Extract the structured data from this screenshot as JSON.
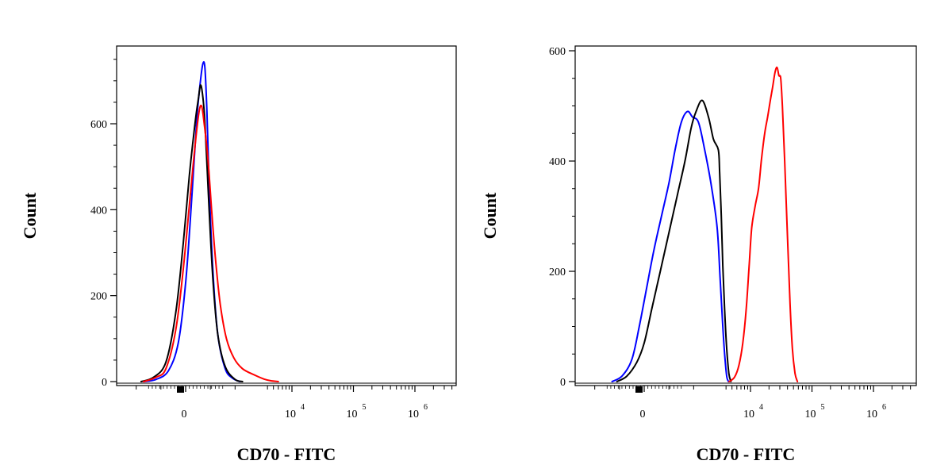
{
  "chart_data": [
    {
      "type": "line",
      "title": "",
      "xlabel": "CD70 - FITC",
      "ylabel": "Count",
      "x_scale": "biexponential",
      "x_ticks": [
        {
          "value": 0,
          "base": "0",
          "exp": ""
        },
        {
          "value": 10000,
          "base": "10",
          "exp": "4"
        },
        {
          "value": 100000,
          "base": "10",
          "exp": "5"
        },
        {
          "value": 1000000,
          "base": "10",
          "exp": "6"
        }
      ],
      "y_ticks": [
        0,
        200,
        400,
        600
      ],
      "ylim": [
        0,
        780
      ],
      "grid": false,
      "legend": "none",
      "series": [
        {
          "color": "#0000ff",
          "points": [
            [
              -1700,
              0
            ],
            [
              -1200,
              5
            ],
            [
              -700,
              25
            ],
            [
              -300,
              90
            ],
            [
              0,
              230
            ],
            [
              250,
              430
            ],
            [
              450,
              610
            ],
            [
              600,
              700
            ],
            [
              700,
              740
            ],
            [
              780,
              730
            ],
            [
              860,
              630
            ],
            [
              950,
              460
            ],
            [
              1100,
              260
            ],
            [
              1300,
              110
            ],
            [
              1600,
              30
            ],
            [
              1900,
              8
            ],
            [
              2200,
              0
            ]
          ]
        },
        {
          "color": "#000000",
          "points": [
            [
              -1800,
              0
            ],
            [
              -1300,
              10
            ],
            [
              -800,
              45
            ],
            [
              -400,
              160
            ],
            [
              -100,
              320
            ],
            [
              150,
              480
            ],
            [
              300,
              560
            ],
            [
              420,
              620
            ],
            [
              520,
              660
            ],
            [
              600,
              690
            ],
            [
              680,
              670
            ],
            [
              760,
              620
            ],
            [
              850,
              520
            ],
            [
              950,
              400
            ],
            [
              1100,
              240
            ],
            [
              1300,
              110
            ],
            [
              1600,
              35
            ],
            [
              2000,
              5
            ],
            [
              2300,
              0
            ]
          ]
        },
        {
          "color": "#ff0000",
          "points": [
            [
              -1700,
              0
            ],
            [
              -1200,
              10
            ],
            [
              -800,
              30
            ],
            [
              -400,
              120
            ],
            [
              -100,
              260
            ],
            [
              200,
              440
            ],
            [
              400,
              560
            ],
            [
              550,
              630
            ],
            [
              650,
              640
            ],
            [
              750,
              600
            ],
            [
              900,
              520
            ],
            [
              1050,
              400
            ],
            [
              1200,
              290
            ],
            [
              1400,
              180
            ],
            [
              1650,
              100
            ],
            [
              1950,
              55
            ],
            [
              2300,
              30
            ],
            [
              2800,
              15
            ],
            [
              3500,
              6
            ],
            [
              4500,
              2
            ],
            [
              6000,
              0
            ]
          ]
        }
      ]
    },
    {
      "type": "line",
      "title": "",
      "xlabel": "CD70 - FITC",
      "ylabel": "Count",
      "x_scale": "biexponential",
      "x_ticks": [
        {
          "value": 0,
          "base": "0",
          "exp": ""
        },
        {
          "value": 10000,
          "base": "10",
          "exp": "4"
        },
        {
          "value": 100000,
          "base": "10",
          "exp": "5"
        },
        {
          "value": 1000000,
          "base": "10",
          "exp": "6"
        }
      ],
      "y_ticks": [
        0,
        200,
        400,
        600
      ],
      "ylim": [
        0,
        610
      ],
      "grid": false,
      "legend": "none",
      "series": [
        {
          "color": "#0000ff",
          "points": [
            [
              -1300,
              0
            ],
            [
              -900,
              10
            ],
            [
              -500,
              40
            ],
            [
              -200,
              100
            ],
            [
              100,
              170
            ],
            [
              400,
              240
            ],
            [
              700,
              300
            ],
            [
              1000,
              360
            ],
            [
              1250,
              420
            ],
            [
              1500,
              470
            ],
            [
              1750,
              490
            ],
            [
              1950,
              480
            ],
            [
              2200,
              470
            ],
            [
              2450,
              420
            ],
            [
              2700,
              360
            ],
            [
              2950,
              280
            ],
            [
              3200,
              190
            ],
            [
              3500,
              110
            ],
            [
              3800,
              50
            ],
            [
              4100,
              10
            ],
            [
              4400,
              0
            ]
          ]
        },
        {
          "color": "#000000",
          "points": [
            [
              -1100,
              0
            ],
            [
              -700,
              10
            ],
            [
              -300,
              35
            ],
            [
              0,
              70
            ],
            [
              300,
              130
            ],
            [
              650,
              200
            ],
            [
              1000,
              270
            ],
            [
              1350,
              340
            ],
            [
              1650,
              400
            ],
            [
              1900,
              460
            ],
            [
              2100,
              490
            ],
            [
              2350,
              510
            ],
            [
              2600,
              480
            ],
            [
              2800,
              440
            ],
            [
              3000,
              420
            ],
            [
              3150,
              380
            ],
            [
              3350,
              300
            ],
            [
              3550,
              210
            ],
            [
              3800,
              130
            ],
            [
              4100,
              60
            ],
            [
              4450,
              15
            ],
            [
              4800,
              0
            ]
          ]
        },
        {
          "color": "#ff0000",
          "points": [
            [
              4500,
              0
            ],
            [
              5500,
              8
            ],
            [
              6500,
              30
            ],
            [
              7500,
              70
            ],
            [
              8500,
              130
            ],
            [
              9500,
              210
            ],
            [
              10500,
              280
            ],
            [
              12000,
              320
            ],
            [
              13500,
              350
            ],
            [
              15000,
              400
            ],
            [
              17000,
              450
            ],
            [
              19000,
              480
            ],
            [
              21000,
              510
            ],
            [
              23000,
              535
            ],
            [
              25000,
              560
            ],
            [
              27000,
              570
            ],
            [
              29000,
              555
            ],
            [
              31000,
              550
            ],
            [
              33000,
              500
            ],
            [
              36000,
              400
            ],
            [
              40000,
              260
            ],
            [
              44000,
              140
            ],
            [
              48000,
              60
            ],
            [
              53000,
              15
            ],
            [
              58000,
              0
            ]
          ]
        }
      ]
    }
  ]
}
